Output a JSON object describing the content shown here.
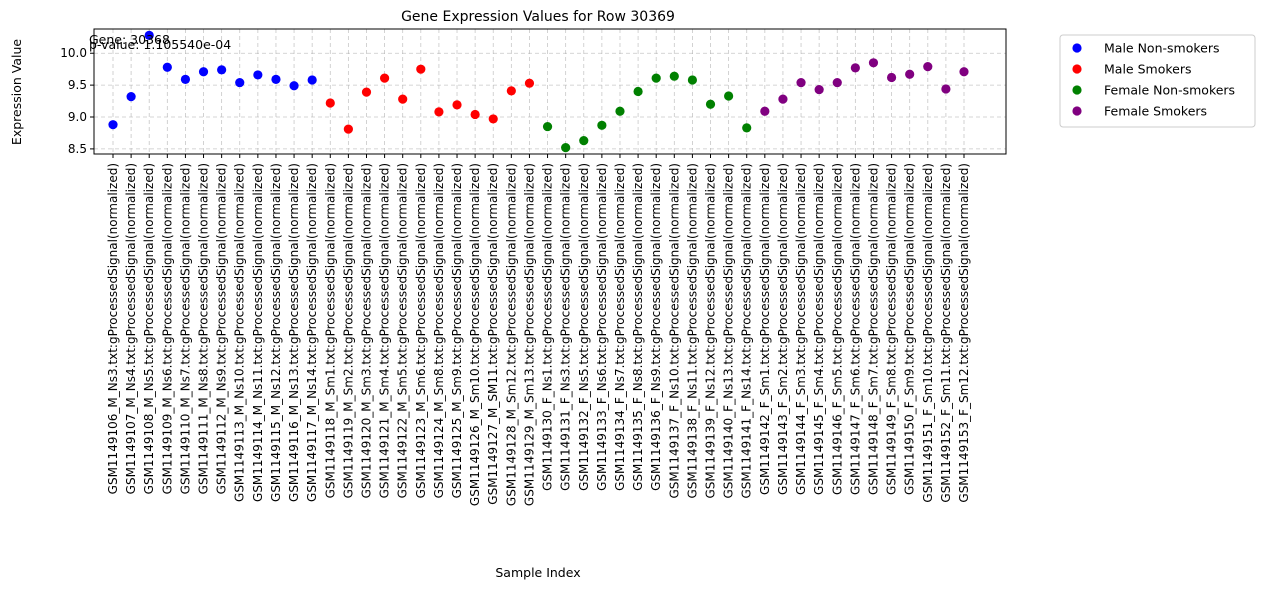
{
  "chart_data": {
    "type": "scatter",
    "title": "Gene Expression Values for Row 30369",
    "xlabel": "Sample Index",
    "ylabel": "Expression Value",
    "ylim": [
      8.42,
      10.38
    ],
    "yticks": [
      "8.5",
      "9.0",
      "9.5",
      "10.0"
    ],
    "grid": true,
    "legend_position": "outside upper right",
    "annotations": [
      "Gene: 30368",
      "p-value: 1.105540e-04"
    ],
    "categories": [
      "GSM1149106_M_Ns3.txt:gProcessedSignal(normalized)",
      "GSM1149107_M_Ns4.txt:gProcessedSignal(normalized)",
      "GSM1149108_M_Ns5.txt:gProcessedSignal(normalized)",
      "GSM1149109_M_Ns6.txt:gProcessedSignal(normalized)",
      "GSM1149110_M_Ns7.txt:gProcessedSignal(normalized)",
      "GSM1149111_M_Ns8.txt:gProcessedSignal(normalized)",
      "GSM1149112_M_Ns9.txt:gProcessedSignal(normalized)",
      "GSM1149113_M_Ns10.txt:gProcessedSignal(normalized)",
      "GSM1149114_M_Ns11.txt:gProcessedSignal(normalized)",
      "GSM1149115_M_Ns12.txt:gProcessedSignal(normalized)",
      "GSM1149116_M_Ns13.txt:gProcessedSignal(normalized)",
      "GSM1149117_M_Ns14.txt:gProcessedSignal(normalized)",
      "GSM1149118_M_Sm1.txt:gProcessedSignal(normalized)",
      "GSM1149119_M_Sm2.txt:gProcessedSignal(normalized)",
      "GSM1149120_M_Sm3.txt:gProcessedSignal(normalized)",
      "GSM1149121_M_Sm4.txt:gProcessedSignal(normalized)",
      "GSM1149122_M_Sm5.txt:gProcessedSignal(normalized)",
      "GSM1149123_M_Sm6.txt:gProcessedSignal(normalized)",
      "GSM1149124_M_Sm8.txt:gProcessedSignal(normalized)",
      "GSM1149125_M_Sm9.txt:gProcessedSignal(normalized)",
      "GSM1149126_M_Sm10.txt:gProcessedSignal(normalized)",
      "GSM1149127_M_SM11.txt:gProcessedSignal(normalized)",
      "GSM1149128_M_Sm12.txt:gProcessedSignal(normalized)",
      "GSM1149129_M_Sm13.txt:gProcessedSignal(normalized)",
      "GSM1149130_F_Ns1.txt:gProcessedSignal(normalized)",
      "GSM1149131_F_Ns3.txt:gProcessedSignal(normalized)",
      "GSM1149132_F_Ns5.txt:gProcessedSignal(normalized)",
      "GSM1149133_F_Ns6.txt:gProcessedSignal(normalized)",
      "GSM1149134_F_Ns7.txt:gProcessedSignal(normalized)",
      "GSM1149135_F_Ns8.txt:gProcessedSignal(normalized)",
      "GSM1149136_F_Ns9.txt:gProcessedSignal(normalized)",
      "GSM1149137_F_Ns10.txt:gProcessedSignal(normalized)",
      "GSM1149138_F_Ns11.txt:gProcessedSignal(normalized)",
      "GSM1149139_F_Ns12.txt:gProcessedSignal(normalized)",
      "GSM1149140_F_Ns13.txt:gProcessedSignal(normalized)",
      "GSM1149141_F_Ns14.txt:gProcessedSignal(normalized)",
      "GSM1149142_F_Sm1.txt:gProcessedSignal(normalized)",
      "GSM1149143_F_Sm2.txt:gProcessedSignal(normalized)",
      "GSM1149144_F_Sm3.txt:gProcessedSignal(normalized)",
      "GSM1149145_F_Sm4.txt:gProcessedSignal(normalized)",
      "GSM1149146_F_Sm5.txt:gProcessedSignal(normalized)",
      "GSM1149147_F_Sm6.txt:gProcessedSignal(normalized)",
      "GSM1149148_F_Sm7.txt:gProcessedSignal(normalized)",
      "GSM1149149_F_Sm8.txt:gProcessedSignal(normalized)",
      "GSM1149150_F_Sm9.txt:gProcessedSignal(normalized)",
      "GSM1149151_F_Sm10.txt:gProcessedSignal(normalized)",
      "GSM1149152_F_Sm11.txt:gProcessedSignal(normalized)",
      "GSM1149153_F_Sm12.txt:gProcessedSignal(normalized)"
    ],
    "series": [
      {
        "name": "Male Non-smokers",
        "color": "#0000ff",
        "x": [
          0,
          1,
          2,
          3,
          4,
          5,
          6,
          7,
          8,
          9,
          10,
          11
        ],
        "values": [
          8.88,
          9.32,
          10.28,
          9.78,
          9.59,
          9.71,
          9.74,
          9.54,
          9.66,
          9.59,
          9.49,
          9.58
        ]
      },
      {
        "name": "Male Smokers",
        "color": "#ff0000",
        "x": [
          12,
          13,
          14,
          15,
          16,
          17,
          18,
          19,
          20,
          21,
          22,
          23
        ],
        "values": [
          9.22,
          8.81,
          9.39,
          9.61,
          9.28,
          9.75,
          9.08,
          9.19,
          9.04,
          8.97,
          9.41,
          9.53
        ]
      },
      {
        "name": "Female Non-smokers",
        "color": "#008000",
        "x": [
          24,
          25,
          26,
          27,
          28,
          29,
          30,
          31,
          32,
          33,
          34,
          35
        ],
        "values": [
          8.85,
          8.52,
          8.63,
          8.87,
          9.09,
          9.4,
          9.61,
          9.64,
          9.58,
          9.2,
          9.33,
          8.83
        ]
      },
      {
        "name": "Female Smokers",
        "color": "#800080",
        "x": [
          36,
          37,
          38,
          39,
          40,
          41,
          42,
          43,
          44,
          45,
          46,
          47
        ],
        "values": [
          9.09,
          9.28,
          9.54,
          9.43,
          9.54,
          9.77,
          9.85,
          9.62,
          9.67,
          9.79,
          9.44,
          9.71
        ]
      }
    ]
  }
}
